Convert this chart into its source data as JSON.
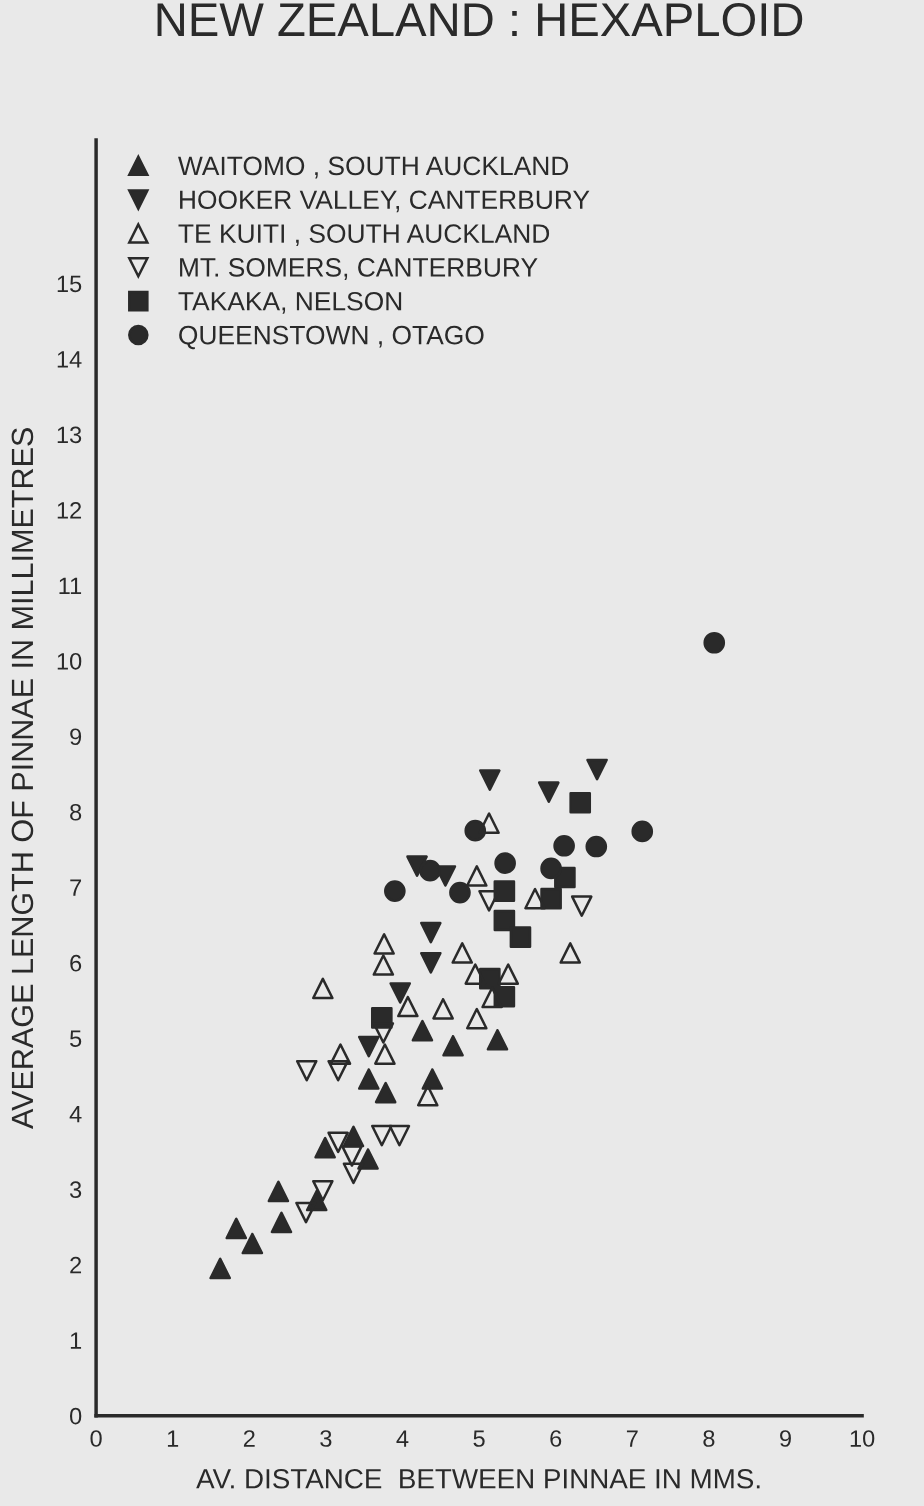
{
  "chart_data": {
    "type": "scatter",
    "title": "NEW ZEALAND : HEXAPLOID",
    "xlabel": "AV. DISTANCE  BETWEEN PINNAE IN MMS.",
    "ylabel": "AVERAGE LENGTH OF PINNAE IN MILLIMETRES",
    "xlim": [
      0,
      10
    ],
    "ylim": [
      0,
      16.9
    ],
    "xticks": [
      0,
      1,
      2,
      3,
      4,
      5,
      6,
      7,
      8,
      9,
      10
    ],
    "yticks": [
      0,
      1,
      2,
      3,
      4,
      5,
      6,
      7,
      8,
      9,
      10,
      11,
      12,
      13,
      14,
      15
    ],
    "grid": false,
    "legend": "top left",
    "series": [
      {
        "name": "WAITOMO , SOUTH AUCKLAND",
        "color": "#2a2a2a",
        "marker": "triangle",
        "x": [
          1.62,
          1.83,
          2.04,
          2.38,
          2.42,
          2.99,
          3.36,
          3.55,
          2.88,
          3.56,
          3.78,
          4.26,
          4.39,
          4.66,
          5.24
        ],
        "values": [
          1.95,
          2.48,
          2.28,
          2.97,
          2.56,
          3.55,
          3.7,
          3.4,
          2.85,
          4.46,
          4.28,
          5.1,
          4.46,
          4.9,
          4.98
        ]
      },
      {
        "name": "HOOKER VALLEY, CANTERBURY",
        "color": "#2a2a2a",
        "marker": "triangle-down",
        "x": [
          5.14,
          5.91,
          6.54,
          4.19,
          4.56,
          4.37,
          4.37,
          3.97,
          3.56
        ],
        "values": [
          8.42,
          8.26,
          8.56,
          7.28,
          7.15,
          6.4,
          6.0,
          5.6,
          4.89
        ]
      },
      {
        "name": "TE KUITI , SOUTH AUCKLAND",
        "color": "#2a2a2a",
        "marker": "triangle-open",
        "x": [
          2.96,
          3.76,
          3.75,
          4.07,
          4.53,
          3.19,
          3.77,
          4.33,
          4.78,
          4.97,
          5.13,
          4.95,
          5.38,
          5.17,
          4.97,
          5.73,
          6.19
        ],
        "values": [
          5.66,
          6.25,
          5.97,
          5.42,
          5.39,
          4.79,
          4.79,
          4.24,
          6.13,
          7.15,
          7.85,
          5.85,
          5.85,
          5.54,
          5.26,
          6.85,
          6.13
        ]
      },
      {
        "name": "MT. SOMERS, CANTERBURY",
        "color": "#2a2a2a",
        "marker": "triangle-down-open",
        "x": [
          2.75,
          3.16,
          3.75,
          3.16,
          3.34,
          3.36,
          3.73,
          3.96,
          2.96,
          2.74,
          5.13,
          6.34
        ],
        "values": [
          4.57,
          4.57,
          5.07,
          3.62,
          3.44,
          3.21,
          3.71,
          3.71,
          2.98,
          2.69,
          6.82,
          6.75
        ]
      },
      {
        "name": "TAKAKA, NELSON",
        "color": "#2a2a2a",
        "marker": "square",
        "x": [
          3.73,
          6.32,
          5.33,
          6.12,
          5.94,
          5.33,
          5.54,
          5.14,
          5.33
        ],
        "values": [
          5.27,
          8.12,
          6.95,
          7.13,
          6.85,
          6.56,
          6.34,
          5.79,
          5.55
        ]
      },
      {
        "name": "QUEENSTOWN , OTAGO",
        "color": "#2a2a2a",
        "marker": "circle",
        "x": [
          3.9,
          4.95,
          5.34,
          4.75,
          4.36,
          6.11,
          6.53,
          7.13,
          5.94,
          8.07
        ],
        "values": [
          6.95,
          7.75,
          7.32,
          6.93,
          7.22,
          7.55,
          7.54,
          7.74,
          7.25,
          10.24
        ]
      }
    ]
  }
}
